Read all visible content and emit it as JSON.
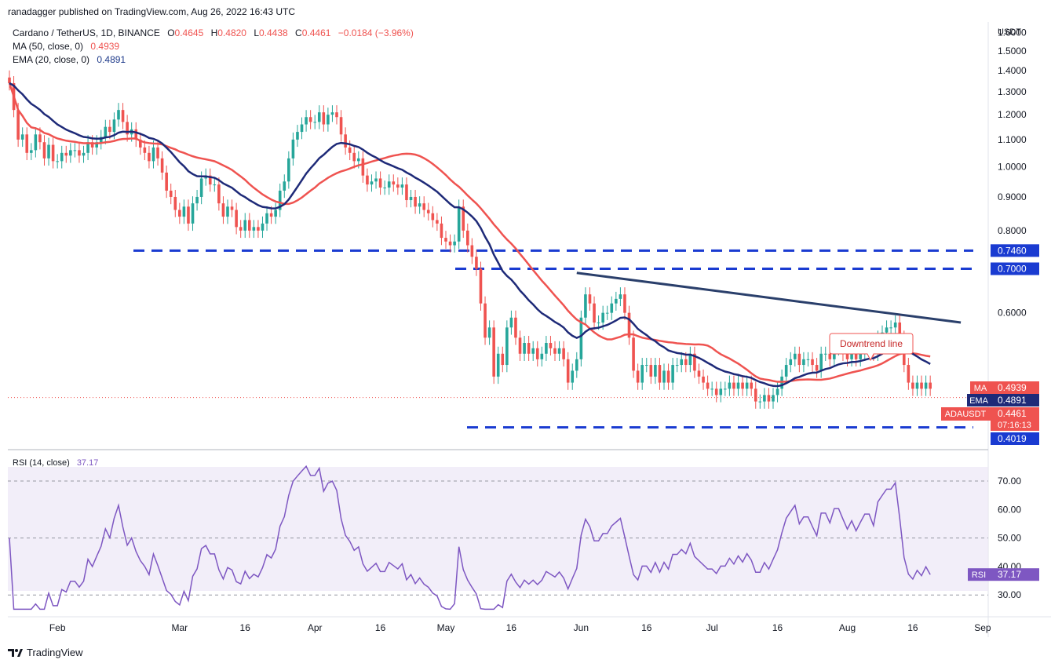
{
  "publisher": "ranadagger published on TradingView.com, Aug 26, 2022 16:43 UTC",
  "legend": {
    "symbol": "Cardano / TetherUS, 1D, BINANCE",
    "ohlc": {
      "o_label": "O",
      "o": "0.4645",
      "h_label": "H",
      "h": "0.4820",
      "l_label": "L",
      "l": "0.4438",
      "c_label": "C",
      "c": "0.4461",
      "change": "−0.0184 (−3.96%)"
    },
    "ma_label": "MA (50, close, 0)",
    "ma_value": "0.4939",
    "ema_label": "EMA (20, close, 0)",
    "ema_value": "0.4891"
  },
  "axis": {
    "currency": "USDT",
    "price_ticks": [
      "1.6000",
      "1.5000",
      "1.4000",
      "1.3000",
      "1.2000",
      "1.1000",
      "1.0000",
      "0.9000",
      "0.8000",
      "0.6000"
    ],
    "rsi_ticks": [
      "70.00",
      "60.00",
      "50.00",
      "40.00",
      "30.00"
    ],
    "x_ticks": [
      "Feb",
      "Mar",
      "16",
      "Apr",
      "16",
      "May",
      "16",
      "Jun",
      "16",
      "Jul",
      "16",
      "Aug",
      "16",
      "Sep"
    ]
  },
  "tags": {
    "ma": {
      "label": "MA",
      "value": "0.4939"
    },
    "ema": {
      "label": "EMA",
      "value": "0.4891"
    },
    "price": {
      "label": "ADAUSDT",
      "value": "0.4461",
      "countdown": "07:16:13"
    },
    "level_746": "0.7460",
    "level_700": "0.7000",
    "level_402": "0.4019",
    "rsi": {
      "label": "RSI",
      "value": "37.17"
    }
  },
  "annotation": "Downtrend line",
  "rsi_legend": {
    "label": "RSI (14, close)",
    "value": "37.17"
  },
  "brand": "TradingView",
  "colors": {
    "up": "#26a69a",
    "down": "#ef5350",
    "ma": "#ef5350",
    "ema": "#1e2a78",
    "level": "#1a3bd1",
    "rsi": "#7e57c2",
    "rsi_band": "#ede7f6",
    "trend": "#2a3f6b"
  },
  "chart_data": [
    {
      "type": "candlestick",
      "title": "Cardano / TetherUS, 1D, BINANCE",
      "x_range": [
        "2022-01-21",
        "2022-08-26"
      ],
      "y_range": [
        0.38,
        1.66
      ],
      "y_scale": "log",
      "horizontal_levels": [
        0.746,
        0.7,
        0.4019
      ],
      "trend_line": {
        "name": "Downtrend line",
        "points": [
          [
            "2022-05-31",
            0.69
          ],
          [
            "2022-08-27",
            0.58
          ]
        ]
      },
      "close_series": {
        "dates_start": "2022-01-21",
        "step_days": 1,
        "values": [
          1.34,
          1.22,
          1.1,
          1.12,
          1.05,
          1.06,
          1.12,
          1.09,
          1.03,
          1.08,
          1.02,
          1.02,
          1.05,
          1.04,
          1.06,
          1.06,
          1.04,
          1.05,
          1.09,
          1.07,
          1.09,
          1.11,
          1.15,
          1.13,
          1.18,
          1.22,
          1.17,
          1.12,
          1.14,
          1.1,
          1.07,
          1.05,
          1.02,
          1.07,
          1.03,
          0.98,
          0.92,
          0.9,
          0.86,
          0.84,
          0.87,
          0.82,
          0.88,
          0.9,
          0.96,
          0.97,
          0.94,
          0.94,
          0.88,
          0.84,
          0.87,
          0.86,
          0.81,
          0.8,
          0.83,
          0.8,
          0.81,
          0.8,
          0.82,
          0.85,
          0.84,
          0.86,
          0.92,
          0.95,
          1.03,
          1.1,
          1.13,
          1.16,
          1.19,
          1.17,
          1.17,
          1.21,
          1.16,
          1.2,
          1.21,
          1.19,
          1.12,
          1.07,
          1.05,
          1.02,
          1.03,
          0.97,
          0.94,
          0.95,
          0.96,
          0.93,
          0.93,
          0.95,
          0.94,
          0.93,
          0.94,
          0.89,
          0.9,
          0.87,
          0.88,
          0.86,
          0.85,
          0.83,
          0.82,
          0.78,
          0.77,
          0.76,
          0.77,
          0.87,
          0.8,
          0.76,
          0.73,
          0.7,
          0.62,
          0.55,
          0.57,
          0.48,
          0.52,
          0.5,
          0.57,
          0.59,
          0.55,
          0.52,
          0.54,
          0.52,
          0.53,
          0.51,
          0.52,
          0.54,
          0.53,
          0.52,
          0.53,
          0.51,
          0.47,
          0.49,
          0.51,
          0.59,
          0.64,
          0.62,
          0.58,
          0.58,
          0.6,
          0.6,
          0.62,
          0.63,
          0.64,
          0.6,
          0.55,
          0.49,
          0.47,
          0.5,
          0.5,
          0.48,
          0.5,
          0.47,
          0.49,
          0.47,
          0.5,
          0.5,
          0.51,
          0.5,
          0.52,
          0.49,
          0.48,
          0.47,
          0.46,
          0.46,
          0.45,
          0.46,
          0.46,
          0.47,
          0.46,
          0.47,
          0.46,
          0.47,
          0.46,
          0.44,
          0.44,
          0.45,
          0.44,
          0.45,
          0.46,
          0.48,
          0.5,
          0.51,
          0.52,
          0.5,
          0.51,
          0.51,
          0.5,
          0.49,
          0.52,
          0.52,
          0.51,
          0.53,
          0.53,
          0.52,
          0.51,
          0.52,
          0.51,
          0.52,
          0.53,
          0.53,
          0.52,
          0.55,
          0.56,
          0.57,
          0.57,
          0.58,
          0.55,
          0.5,
          0.47,
          0.46,
          0.47,
          0.46,
          0.47,
          0.46
        ]
      },
      "ma50_last": 0.4939,
      "ema20_last": 0.4891,
      "last_price": 0.4461
    },
    {
      "type": "line",
      "title": "RSI (14, close)",
      "y_range": [
        24,
        78
      ],
      "reference_levels": [
        70,
        50,
        30
      ],
      "last_value": 37.17
    }
  ]
}
